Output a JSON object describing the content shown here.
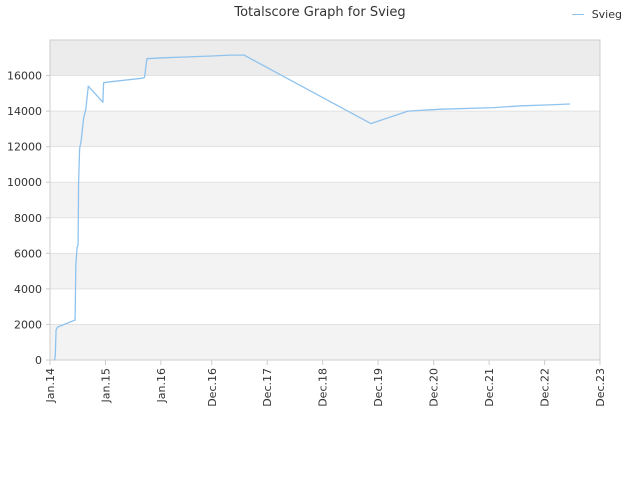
{
  "chart_data": {
    "type": "line",
    "title": "Totalscore Graph for Svieg",
    "xlabel": "",
    "ylabel": "",
    "ylim": [
      0,
      18000
    ],
    "yticks": [
      0,
      2000,
      4000,
      6000,
      8000,
      10000,
      12000,
      14000,
      16000
    ],
    "xlim": [
      "2014-01-01",
      "2023-12-01"
    ],
    "xticks": [
      {
        "label": "Jan.14",
        "date": "2014-01-01"
      },
      {
        "label": "Jan.15",
        "date": "2015-01-01"
      },
      {
        "label": "Jan.16",
        "date": "2016-01-01"
      },
      {
        "label": "Dec.16",
        "date": "2016-12-01"
      },
      {
        "label": "Dec.17",
        "date": "2017-12-01"
      },
      {
        "label": "Dec.18",
        "date": "2018-12-01"
      },
      {
        "label": "Dec.19",
        "date": "2019-12-01"
      },
      {
        "label": "Dec.20",
        "date": "2020-12-01"
      },
      {
        "label": "Dec.21",
        "date": "2021-12-01"
      },
      {
        "label": "Dec.22",
        "date": "2022-12-01"
      },
      {
        "label": "Dec.23",
        "date": "2023-12-01"
      }
    ],
    "grid": true,
    "legend": "top-right",
    "colors": {
      "series": "#8fc3ee",
      "band_light": "#f3f3f3",
      "band_top": "#ececec",
      "grid": "#e2e2e2",
      "axis": "#cccccc",
      "text": "#333333"
    },
    "series": [
      {
        "name": "Svieg",
        "points": [
          [
            "2014-02-01",
            0
          ],
          [
            "2014-02-05",
            300
          ],
          [
            "2014-02-10",
            1700
          ],
          [
            "2014-02-20",
            1850
          ],
          [
            "2014-06-15",
            2250
          ],
          [
            "2014-06-20",
            5300
          ],
          [
            "2014-06-28",
            6300
          ],
          [
            "2014-07-05",
            6500
          ],
          [
            "2014-07-08",
            10000
          ],
          [
            "2014-07-15",
            11900
          ],
          [
            "2014-07-25",
            12300
          ],
          [
            "2014-08-10",
            13600
          ],
          [
            "2014-08-25",
            14100
          ],
          [
            "2014-09-10",
            15400
          ],
          [
            "2014-12-15",
            14500
          ],
          [
            "2014-12-20",
            15600
          ],
          [
            "2015-02-01",
            15650
          ],
          [
            "2015-09-01",
            15850
          ],
          [
            "2015-09-15",
            15900
          ],
          [
            "2015-10-01",
            16950
          ],
          [
            "2016-01-15",
            17000
          ],
          [
            "2016-07-01",
            17050
          ],
          [
            "2016-12-01",
            17100
          ],
          [
            "2017-04-01",
            17150
          ],
          [
            "2017-07-01",
            17150
          ],
          [
            "2019-10-15",
            13300
          ],
          [
            "2020-06-15",
            14000
          ],
          [
            "2021-01-01",
            14100
          ],
          [
            "2022-01-01",
            14200
          ],
          [
            "2022-07-01",
            14300
          ],
          [
            "2023-01-01",
            14350
          ],
          [
            "2023-05-15",
            14400
          ]
        ]
      }
    ]
  }
}
